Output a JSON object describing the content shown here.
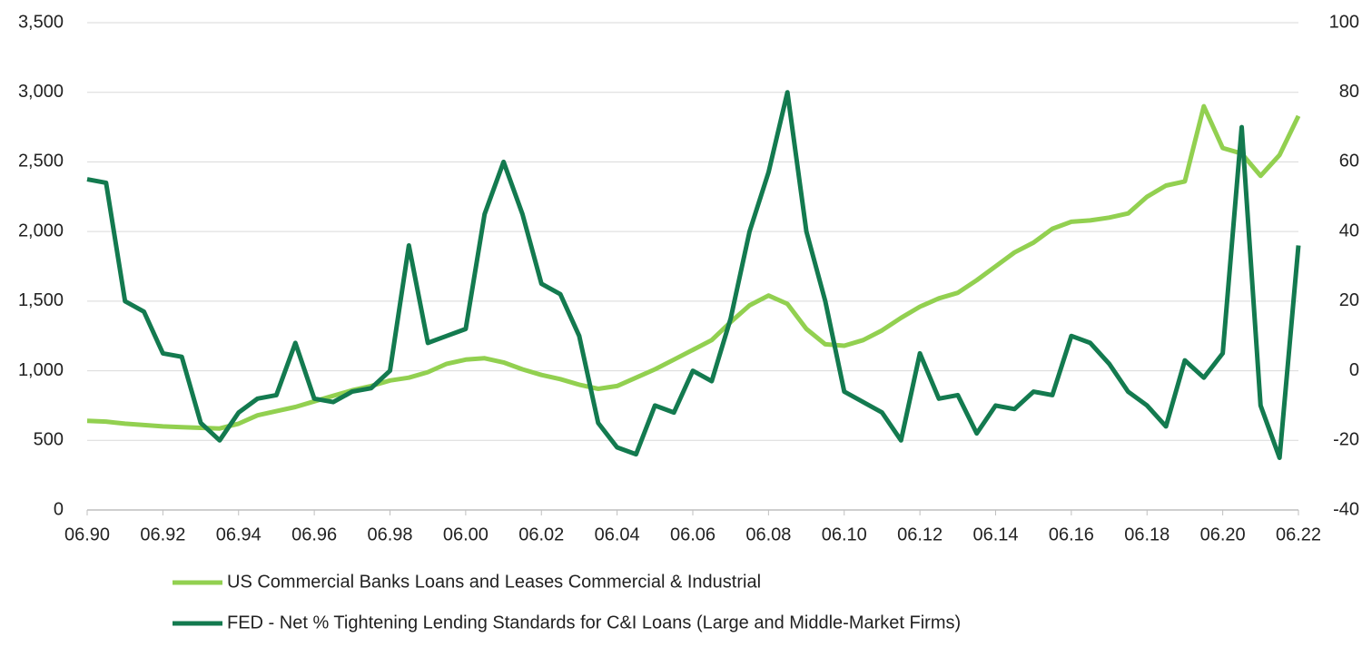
{
  "chart_data": {
    "type": "line",
    "x": [
      1990.5,
      1991,
      1991.5,
      1992,
      1992.5,
      1993,
      1993.5,
      1994,
      1994.5,
      1995,
      1995.5,
      1996,
      1996.5,
      1997,
      1997.5,
      1998,
      1998.5,
      1999,
      1999.5,
      2000,
      2000.5,
      2001,
      2001.5,
      2002,
      2002.5,
      2003,
      2003.5,
      2004,
      2004.5,
      2005,
      2005.5,
      2006,
      2006.5,
      2007,
      2007.5,
      2008,
      2008.5,
      2009,
      2009.5,
      2010,
      2010.5,
      2011,
      2011.5,
      2012,
      2012.5,
      2013,
      2013.5,
      2014,
      2014.5,
      2015,
      2015.5,
      2016,
      2016.5,
      2017,
      2017.5,
      2018,
      2018.5,
      2019,
      2019.5,
      2020,
      2020.5,
      2021,
      2021.5,
      2022,
      2022.5
    ],
    "series": [
      {
        "name": "US Commercial Banks Loans and Leases Commercial & Industrial",
        "color": "#92d050",
        "values": [
          640,
          635,
          620,
          610,
          600,
          595,
          590,
          585,
          620,
          680,
          710,
          740,
          780,
          820,
          860,
          890,
          930,
          950,
          990,
          1050,
          1080,
          1090,
          1060,
          1010,
          970,
          940,
          900,
          870,
          890,
          950,
          1010,
          1080,
          1150,
          1220,
          1350,
          1470,
          1540,
          1480,
          1300,
          1190,
          1180,
          1220,
          1290,
          1380,
          1460,
          1520,
          1560,
          1650,
          1750,
          1850,
          1920,
          2020,
          2070,
          2080,
          2100,
          2130,
          2250,
          2330,
          2360,
          2900,
          2600,
          2560,
          2400,
          2550,
          2830
        ]
      },
      {
        "name": "FED - Net % Tightening Lending Standards for C&I Loans (Large and Middle-Market Firms)",
        "color": "#137a4f",
        "axis": "y2",
        "values": [
          55,
          54,
          20,
          17,
          5,
          4,
          -15,
          -20,
          -12,
          -8,
          -7,
          8,
          -8,
          -9,
          -6,
          -5,
          0,
          36,
          8,
          10,
          12,
          45,
          60,
          45,
          25,
          22,
          10,
          -15,
          -22,
          -24,
          -10,
          -12,
          0,
          -3,
          15,
          40,
          57,
          80,
          40,
          20,
          -6,
          -9,
          -12,
          -20,
          5,
          -8,
          -7,
          -18,
          -10,
          -11,
          -6,
          -7,
          10,
          8,
          2,
          -6,
          -10,
          -16,
          3,
          -2,
          5,
          70,
          -10,
          -25,
          36
        ]
      }
    ],
    "xlim": [
      1990.5,
      2022.5
    ],
    "xticks": [
      {
        "value": 1990.5,
        "label": "06.90"
      },
      {
        "value": 1992.5,
        "label": "06.92"
      },
      {
        "value": 1994.5,
        "label": "06.94"
      },
      {
        "value": 1996.5,
        "label": "06.96"
      },
      {
        "value": 1998.5,
        "label": "06.98"
      },
      {
        "value": 2000.5,
        "label": "06.00"
      },
      {
        "value": 2002.5,
        "label": "06.02"
      },
      {
        "value": 2004.5,
        "label": "06.04"
      },
      {
        "value": 2006.5,
        "label": "06.06"
      },
      {
        "value": 2008.5,
        "label": "06.08"
      },
      {
        "value": 2010.5,
        "label": "06.10"
      },
      {
        "value": 2012.5,
        "label": "06.12"
      },
      {
        "value": 2014.5,
        "label": "06.14"
      },
      {
        "value": 2016.5,
        "label": "06.16"
      },
      {
        "value": 2018.5,
        "label": "06.18"
      },
      {
        "value": 2020.5,
        "label": "06.20"
      },
      {
        "value": 2022.5,
        "label": "06.22"
      }
    ],
    "ylim": [
      0,
      3500
    ],
    "yticks": [
      0,
      500,
      {
        "value": 1000,
        "label": "1,000"
      },
      {
        "value": 1500,
        "label": "1,500"
      },
      {
        "value": 2000,
        "label": "2,000"
      },
      {
        "value": 2500,
        "label": "2,500"
      },
      {
        "value": 3000,
        "label": "3,000"
      },
      {
        "value": 3500,
        "label": "3,500"
      }
    ],
    "y2lim": [
      -40,
      100
    ],
    "y2ticks": [
      -40,
      -20,
      0,
      20,
      40,
      60,
      80,
      100
    ],
    "grid": true
  }
}
